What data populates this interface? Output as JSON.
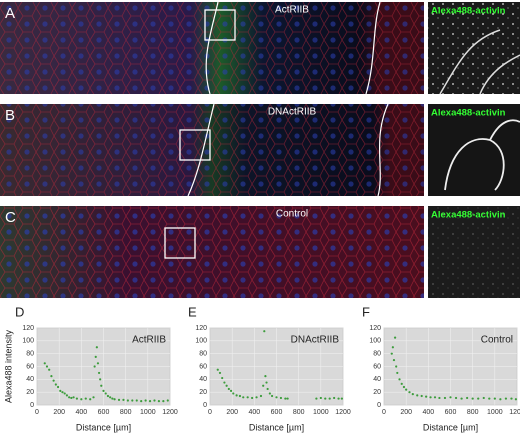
{
  "panels": [
    {
      "letter": "A",
      "title": "ActRIIB",
      "inset_label": "Alexa488-activin"
    },
    {
      "letter": "B",
      "title": "DNActRIIB",
      "inset_label": "Alexa488-activin"
    },
    {
      "letter": "C",
      "title": "Control",
      "inset_label": "Alexa488-activin"
    }
  ],
  "chart_data": [
    {
      "type": "scatter",
      "label": "D",
      "xlabel": "Distance [µm]",
      "ylabel": "Alexa488 intensity",
      "grid": true,
      "xlim": [
        0,
        1200
      ],
      "xticks": [
        0,
        200,
        400,
        600,
        800,
        1000,
        1200
      ],
      "ylim": [
        0,
        120
      ],
      "yticks": [
        0,
        20,
        40,
        60,
        80,
        100,
        120
      ],
      "x": [
        70,
        90,
        110,
        130,
        150,
        170,
        190,
        210,
        230,
        250,
        270,
        290,
        310,
        330,
        360,
        400,
        440,
        480,
        510,
        520,
        530,
        540,
        550,
        560,
        570,
        580,
        600,
        620,
        640,
        660,
        680,
        700,
        740,
        780,
        820,
        860,
        900,
        940,
        980,
        1020,
        1060,
        1100,
        1140,
        1180
      ],
      "series": [
        {
          "name": "ActRIIB",
          "color": "#3c9c3c",
          "values": [
            65,
            60,
            55,
            45,
            38,
            32,
            28,
            22,
            20,
            18,
            15,
            12,
            11,
            12,
            10,
            9,
            10,
            9,
            12,
            60,
            75,
            90,
            65,
            50,
            40,
            30,
            22,
            18,
            14,
            12,
            10,
            9,
            8,
            8,
            7,
            7,
            7,
            6,
            7,
            6,
            7,
            6,
            6,
            7
          ]
        }
      ]
    },
    {
      "type": "scatter",
      "label": "E",
      "xlabel": "Distance [µm]",
      "grid": true,
      "xlim": [
        0,
        1200
      ],
      "xticks": [
        0,
        200,
        400,
        600,
        800,
        1000,
        1200
      ],
      "ylim": [
        0,
        120
      ],
      "yticks": [
        0,
        20,
        40,
        60,
        80,
        100,
        120
      ],
      "x": [
        70,
        90,
        110,
        130,
        150,
        170,
        190,
        210,
        240,
        270,
        300,
        340,
        380,
        420,
        460,
        480,
        490,
        500,
        510,
        520,
        540,
        560,
        600,
        640,
        680,
        700,
        960,
        1000,
        1040,
        1080,
        1120,
        1160,
        1190
      ],
      "series": [
        {
          "name": "DNActRIIB",
          "color": "#3c9c3c",
          "values": [
            55,
            50,
            42,
            35,
            30,
            25,
            22,
            18,
            15,
            14,
            12,
            12,
            11,
            12,
            14,
            30,
            115,
            45,
            35,
            25,
            18,
            14,
            12,
            11,
            10,
            10,
            10,
            11,
            10,
            10,
            11,
            10,
            10
          ]
        }
      ]
    },
    {
      "type": "scatter",
      "label": "F",
      "xlabel": "Distance [µm]",
      "grid": true,
      "xlim": [
        0,
        1200
      ],
      "xticks": [
        0,
        200,
        400,
        600,
        800,
        1000,
        1200
      ],
      "ylim": [
        0,
        120
      ],
      "yticks": [
        0,
        20,
        40,
        60,
        80,
        100,
        120
      ],
      "x": [
        70,
        80,
        90,
        100,
        110,
        120,
        140,
        160,
        180,
        200,
        230,
        260,
        300,
        340,
        380,
        420,
        460,
        500,
        550,
        600,
        650,
        700,
        750,
        800,
        850,
        900,
        950,
        1000,
        1050,
        1100,
        1150,
        1190
      ],
      "series": [
        {
          "name": "Control",
          "color": "#3c9c3c",
          "values": [
            80,
            90,
            70,
            105,
            60,
            50,
            40,
            33,
            28,
            24,
            20,
            17,
            15,
            14,
            13,
            12,
            12,
            11,
            11,
            12,
            11,
            10,
            11,
            10,
            10,
            11,
            10,
            10,
            9,
            10,
            10,
            9
          ]
        }
      ]
    }
  ]
}
